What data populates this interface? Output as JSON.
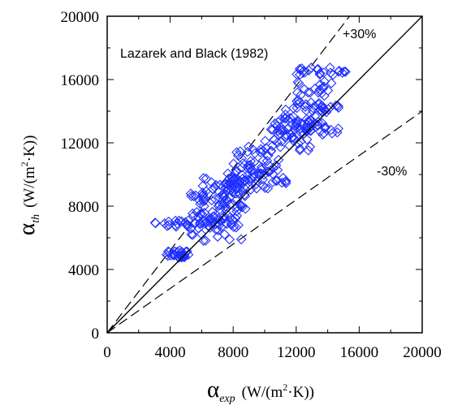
{
  "chart_data": {
    "type": "scatter",
    "title": "",
    "xlabel": {
      "symbol": "α",
      "subscript": "exp",
      "units_prefix": "(W/(m",
      "units_sup": "2",
      "units_suffix": "·K))"
    },
    "ylabel": {
      "symbol": "α",
      "subscript": "th",
      "units_prefix": "(W/(m",
      "units_sup": "2",
      "units_suffix": "·K))"
    },
    "xlim": [
      0,
      20000
    ],
    "ylim": [
      0,
      20000
    ],
    "xticks": [
      "0",
      "4000",
      "8000",
      "12000",
      "16000",
      "20000"
    ],
    "yticks": [
      "0",
      "4000",
      "8000",
      "12000",
      "16000",
      "20000"
    ],
    "grid": false,
    "legend": "",
    "marker": "open-diamond",
    "marker_color": "#1f2fff",
    "annotations": {
      "series_label": "Lazarek and Black (1982)",
      "plus_label": "+30%",
      "minus_label": "-30%"
    },
    "reference_lines": [
      {
        "name": "parity",
        "slope": 1.0,
        "style": "solid"
      },
      {
        "name": "+30%",
        "slope": 1.3,
        "style": "dashed"
      },
      {
        "name": "-30%",
        "slope": 0.7,
        "style": "dashed"
      }
    ],
    "clusters": [
      {
        "x": [
          3600,
          5200
        ],
        "y": [
          4700,
          5200
        ],
        "n": 28
      },
      {
        "x": [
          3000,
          6200
        ],
        "y": [
          6700,
          7100
        ],
        "n": 20
      },
      {
        "x": [
          5000,
          8600
        ],
        "y": [
          5800,
          9000
        ],
        "n": 70
      },
      {
        "x": [
          6000,
          8800
        ],
        "y": [
          6500,
          9800
        ],
        "n": 60
      },
      {
        "x": [
          7500,
          10500
        ],
        "y": [
          9000,
          10500
        ],
        "n": 35
      },
      {
        "x": [
          7500,
          11500
        ],
        "y": [
          9400,
          9800
        ],
        "n": 18
      },
      {
        "x": [
          8000,
          11000
        ],
        "y": [
          10000,
          11800
        ],
        "n": 40
      },
      {
        "x": [
          10000,
          13000
        ],
        "y": [
          11500,
          13500
        ],
        "n": 45
      },
      {
        "x": [
          11000,
          14000
        ],
        "y": [
          12500,
          14500
        ],
        "n": 40
      },
      {
        "x": [
          12000,
          15000
        ],
        "y": [
          14000,
          16000
        ],
        "n": 35
      },
      {
        "x": [
          12000,
          15200
        ],
        "y": [
          16300,
          16800
        ],
        "n": 22
      },
      {
        "x": [
          10000,
          15000
        ],
        "y": [
          12500,
          13000
        ],
        "n": 14
      }
    ]
  }
}
